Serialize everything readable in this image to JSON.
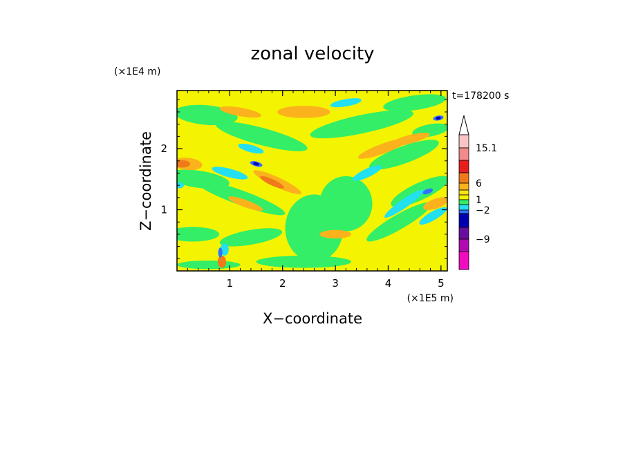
{
  "chart_data": {
    "type": "heatmap",
    "title": "zonal velocity",
    "xlabel": "X−coordinate",
    "ylabel": "Z−coordinate",
    "x_unit": "(×1E5 m)",
    "y_unit": "(×1E4 m)",
    "time_label": "t=178200 s",
    "xlim": [
      0,
      5.12
    ],
    "ylim": [
      0,
      2.95
    ],
    "x_ticks": [
      {
        "value": 1,
        "label": "1"
      },
      {
        "value": 2,
        "label": "2"
      },
      {
        "value": 3,
        "label": "3"
      },
      {
        "value": 4,
        "label": "4"
      },
      {
        "value": 5,
        "label": "5"
      }
    ],
    "y_ticks": [
      {
        "value": 1,
        "label": "1"
      },
      {
        "value": 2,
        "label": "2"
      }
    ],
    "colorbar": {
      "levels_from_top": [
        {
          "color": "#ffffff",
          "shape": "triangle"
        },
        {
          "color": "#f9c4c4"
        },
        {
          "color": "#f58a8a"
        },
        {
          "color": "#e81d1d"
        },
        {
          "color": "#f07a1a"
        },
        {
          "color": "#fbb21c"
        },
        {
          "color": "#f7e31a"
        },
        {
          "color": "#f4f400"
        },
        {
          "color": "#33ee66"
        },
        {
          "color": "#22e0f0"
        },
        {
          "color": "#3370ff"
        },
        {
          "color": "#0000b0"
        },
        {
          "color": "#6a0ea0"
        },
        {
          "color": "#b00cb0"
        },
        {
          "color": "#f00cc0"
        }
      ],
      "labels": [
        {
          "text": "15.1",
          "after_level": 1
        },
        {
          "text": "6",
          "after_level": 4
        },
        {
          "text": "1",
          "after_level": 7
        },
        {
          "text": "−2",
          "after_level": 9
        },
        {
          "text": "−9",
          "after_level": 12
        }
      ]
    },
    "field": {
      "background": "#f4f400",
      "regions": [
        {
          "color": "#33ee66",
          "cx": 0.55,
          "cy": 2.55,
          "rx": 0.6,
          "ry": 0.16,
          "rot": -5
        },
        {
          "color": "#33ee66",
          "cx": 1.6,
          "cy": 2.2,
          "rx": 0.9,
          "ry": 0.14,
          "rot": -15
        },
        {
          "color": "#33ee66",
          "cx": 0.4,
          "cy": 1.5,
          "rx": 0.6,
          "ry": 0.14,
          "rot": -8
        },
        {
          "color": "#33ee66",
          "cx": 1.2,
          "cy": 1.2,
          "rx": 0.9,
          "ry": 0.12,
          "rot": -20
        },
        {
          "color": "#33ee66",
          "cx": 0.3,
          "cy": 0.6,
          "rx": 0.5,
          "ry": 0.12,
          "rot": 0
        },
        {
          "color": "#33ee66",
          "cx": 1.4,
          "cy": 0.55,
          "rx": 0.6,
          "ry": 0.12,
          "rot": 10
        },
        {
          "color": "#33ee66",
          "cx": 2.6,
          "cy": 0.7,
          "rx": 0.55,
          "ry": 0.55,
          "rot": 0
        },
        {
          "color": "#33ee66",
          "cx": 3.2,
          "cy": 1.1,
          "rx": 0.5,
          "ry": 0.45,
          "rot": 0
        },
        {
          "color": "#33ee66",
          "cx": 3.5,
          "cy": 2.4,
          "rx": 1.0,
          "ry": 0.15,
          "rot": 12
        },
        {
          "color": "#33ee66",
          "cx": 4.3,
          "cy": 1.9,
          "rx": 0.7,
          "ry": 0.14,
          "rot": 20
        },
        {
          "color": "#33ee66",
          "cx": 4.6,
          "cy": 1.3,
          "rx": 0.6,
          "ry": 0.14,
          "rot": 25
        },
        {
          "color": "#33ee66",
          "cx": 4.2,
          "cy": 0.8,
          "rx": 0.7,
          "ry": 0.12,
          "rot": 30
        },
        {
          "color": "#33ee66",
          "cx": 4.5,
          "cy": 2.75,
          "rx": 0.6,
          "ry": 0.12,
          "rot": 8
        },
        {
          "color": "#33ee66",
          "cx": 0.6,
          "cy": 0.1,
          "rx": 0.6,
          "ry": 0.07,
          "rot": 0
        },
        {
          "color": "#33ee66",
          "cx": 2.4,
          "cy": 0.15,
          "rx": 0.9,
          "ry": 0.1,
          "rot": 0
        },
        {
          "color": "#33ee66",
          "cx": 4.8,
          "cy": 2.3,
          "rx": 0.35,
          "ry": 0.1,
          "rot": 10
        },
        {
          "color": "#fbb21c",
          "cx": 0.2,
          "cy": 1.75,
          "rx": 0.28,
          "ry": 0.1,
          "rot": -5
        },
        {
          "color": "#fbb21c",
          "cx": 1.9,
          "cy": 1.45,
          "rx": 0.5,
          "ry": 0.08,
          "rot": -25
        },
        {
          "color": "#fbb21c",
          "cx": 2.4,
          "cy": 2.6,
          "rx": 0.5,
          "ry": 0.1,
          "rot": 0
        },
        {
          "color": "#fbb21c",
          "cx": 3.9,
          "cy": 2.0,
          "rx": 0.5,
          "ry": 0.08,
          "rot": 20
        },
        {
          "color": "#fbb21c",
          "cx": 4.4,
          "cy": 2.15,
          "rx": 0.4,
          "ry": 0.07,
          "rot": 15
        },
        {
          "color": "#fbb21c",
          "cx": 1.2,
          "cy": 2.6,
          "rx": 0.4,
          "ry": 0.07,
          "rot": -10
        },
        {
          "color": "#fbb21c",
          "cx": 4.9,
          "cy": 1.1,
          "rx": 0.25,
          "ry": 0.08,
          "rot": 20
        },
        {
          "color": "#fbb21c",
          "cx": 3.0,
          "cy": 0.6,
          "rx": 0.3,
          "ry": 0.07,
          "rot": 0
        },
        {
          "color": "#fbb21c",
          "cx": 1.3,
          "cy": 1.1,
          "rx": 0.35,
          "ry": 0.06,
          "rot": -20
        },
        {
          "color": "#22e0f0",
          "cx": 1.0,
          "cy": 1.6,
          "rx": 0.35,
          "ry": 0.07,
          "rot": -15
        },
        {
          "color": "#22e0f0",
          "cx": 1.4,
          "cy": 2.0,
          "rx": 0.25,
          "ry": 0.06,
          "rot": -15
        },
        {
          "color": "#22e0f0",
          "cx": 3.6,
          "cy": 1.6,
          "rx": 0.3,
          "ry": 0.07,
          "rot": 25
        },
        {
          "color": "#22e0f0",
          "cx": 4.3,
          "cy": 1.1,
          "rx": 0.45,
          "ry": 0.07,
          "rot": 35
        },
        {
          "color": "#22e0f0",
          "cx": 4.85,
          "cy": 0.9,
          "rx": 0.3,
          "ry": 0.07,
          "rot": 30
        },
        {
          "color": "#22e0f0",
          "cx": 3.2,
          "cy": 2.75,
          "rx": 0.3,
          "ry": 0.06,
          "rot": 10
        },
        {
          "color": "#22e0f0",
          "cx": 0.05,
          "cy": 1.4,
          "rx": 0.08,
          "ry": 0.05,
          "rot": 0
        },
        {
          "color": "#22e0f0",
          "cx": 0.9,
          "cy": 0.35,
          "rx": 0.08,
          "ry": 0.1,
          "rot": 0
        },
        {
          "color": "#f07a1a",
          "cx": 0.1,
          "cy": 1.75,
          "rx": 0.15,
          "ry": 0.06,
          "rot": 0
        },
        {
          "color": "#f07a1a",
          "cx": 1.8,
          "cy": 1.45,
          "rx": 0.25,
          "ry": 0.05,
          "rot": -25
        },
        {
          "color": "#f07a1a",
          "cx": 0.85,
          "cy": 0.15,
          "rx": 0.08,
          "ry": 0.1,
          "rot": 0
        },
        {
          "color": "#3370ff",
          "cx": 1.5,
          "cy": 1.75,
          "rx": 0.12,
          "ry": 0.04,
          "rot": -15
        },
        {
          "color": "#3370ff",
          "cx": 4.95,
          "cy": 2.5,
          "rx": 0.1,
          "ry": 0.04,
          "rot": 10
        },
        {
          "color": "#3370ff",
          "cx": 4.75,
          "cy": 1.3,
          "rx": 0.1,
          "ry": 0.04,
          "rot": 20
        },
        {
          "color": "#3370ff",
          "cx": 0.82,
          "cy": 0.3,
          "rx": 0.04,
          "ry": 0.08,
          "rot": 0
        },
        {
          "color": "#0000b0",
          "cx": 1.5,
          "cy": 1.75,
          "rx": 0.06,
          "ry": 0.025,
          "rot": -15
        },
        {
          "color": "#0000b0",
          "cx": 4.95,
          "cy": 2.5,
          "rx": 0.05,
          "ry": 0.025,
          "rot": 10
        }
      ]
    }
  }
}
